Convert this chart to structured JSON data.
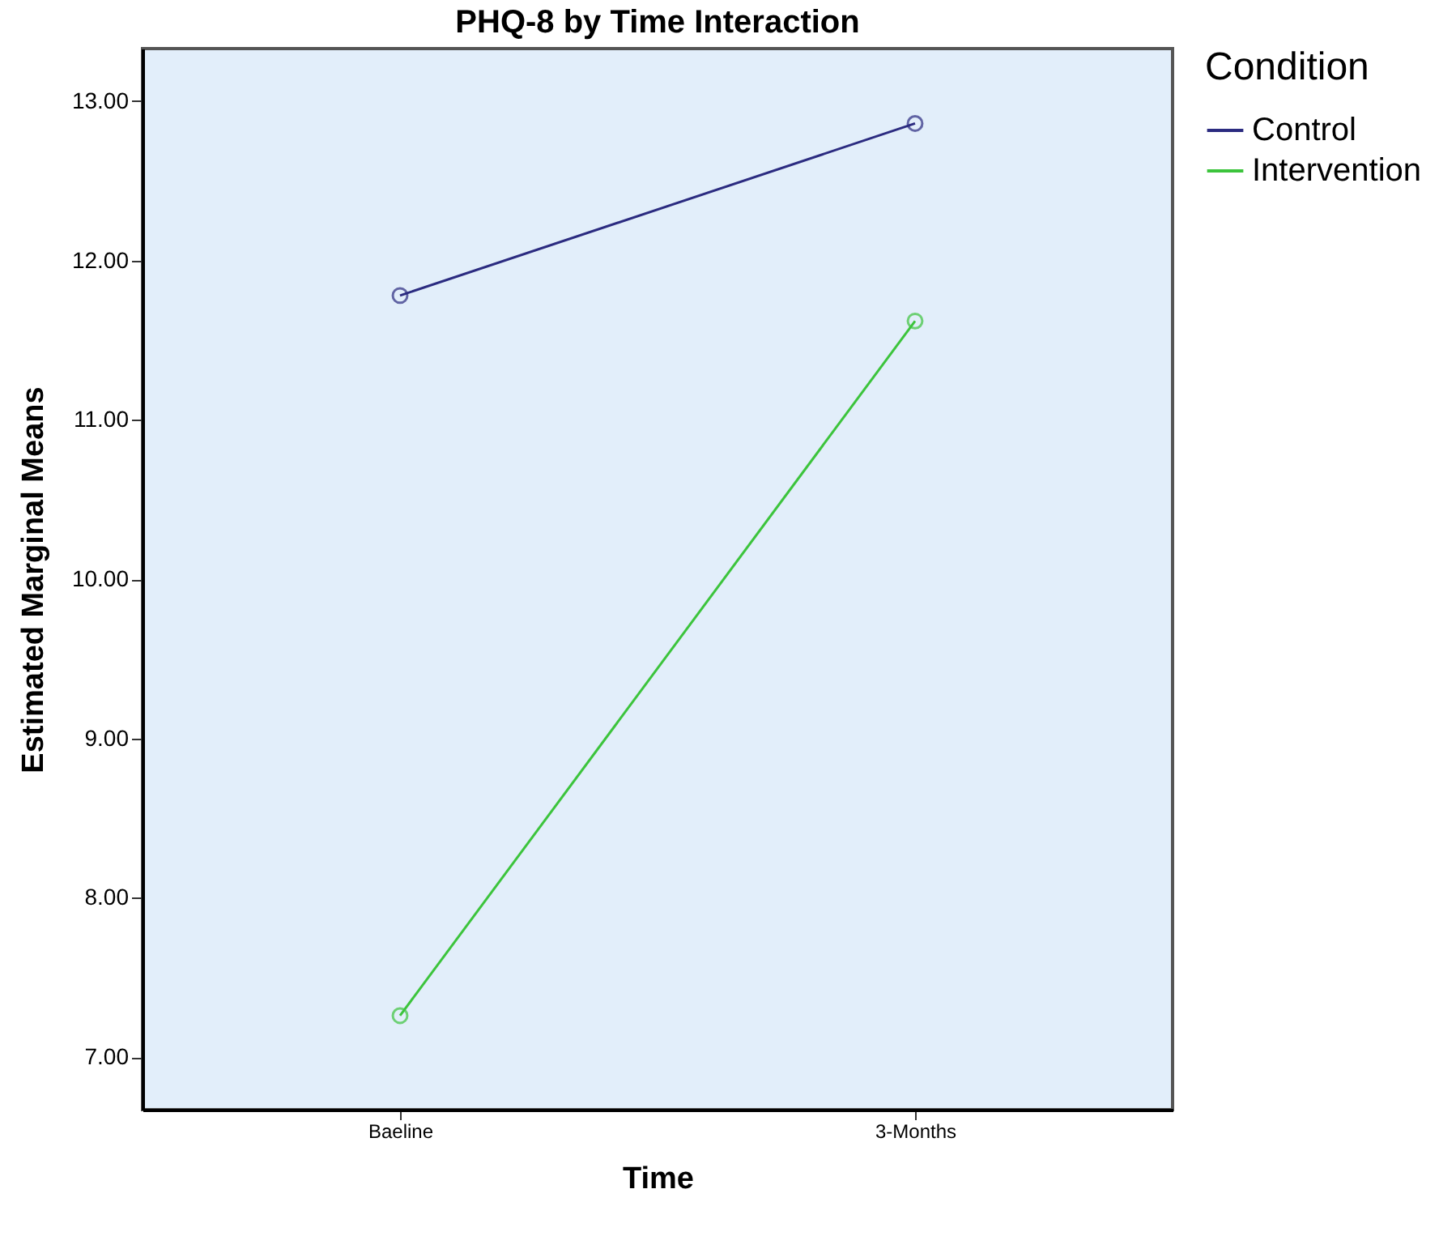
{
  "chart_data": {
    "type": "line",
    "title": "PHQ-8 by Time Interaction",
    "xlabel": "Time",
    "ylabel": "Estimated Marginal Means",
    "legend_title": "Condition",
    "categories": [
      "Baeline",
      "3-Months"
    ],
    "series": [
      {
        "name": "Control",
        "color": "#2b2b80",
        "values": [
          11.78,
          12.86
        ]
      },
      {
        "name": "Intervention",
        "color": "#3cc43c",
        "values": [
          7.26,
          11.62
        ]
      }
    ],
    "ylim": [
      6.67,
      13.33
    ],
    "yticks": [
      {
        "value": 7,
        "label": "7.00"
      },
      {
        "value": 8,
        "label": "8.00"
      },
      {
        "value": 9,
        "label": "9.00"
      },
      {
        "value": 10,
        "label": "10.00"
      },
      {
        "value": 11,
        "label": "11.00"
      },
      {
        "value": 12,
        "label": "12.00"
      },
      {
        "value": 13,
        "label": "13.00"
      }
    ],
    "grid": false,
    "legend": "top right",
    "marker": "circle",
    "line_style": "solid"
  }
}
